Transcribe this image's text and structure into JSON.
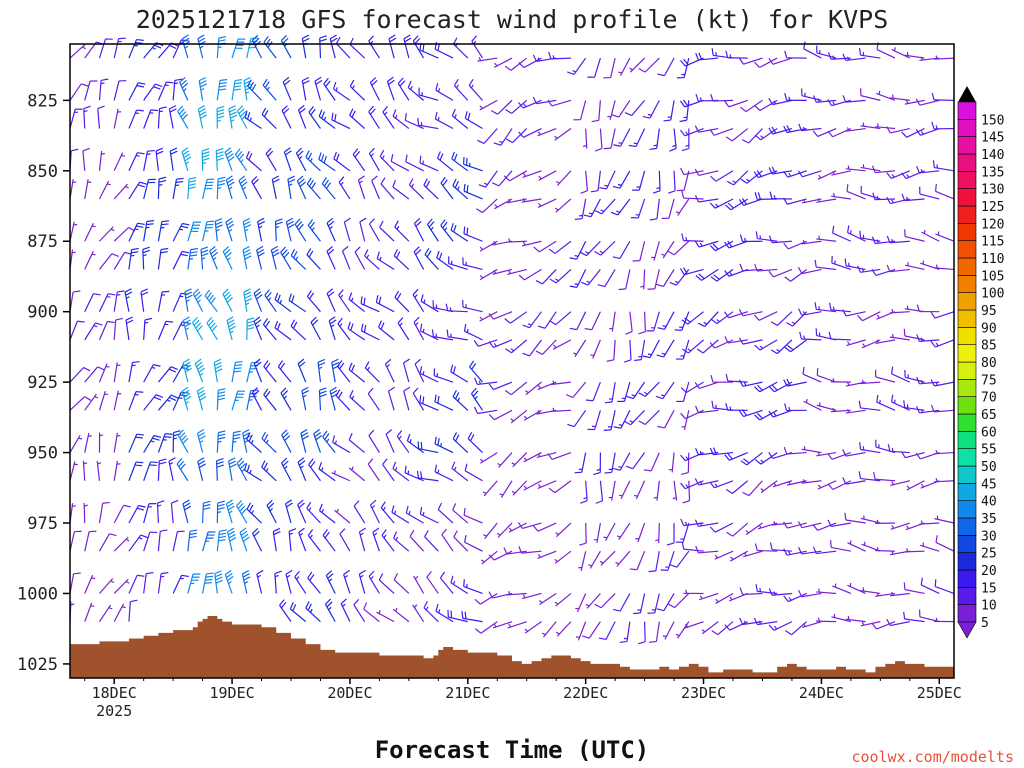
{
  "chart_data": {
    "type": "wind-barb-time-height",
    "title": "2025121718 GFS forecast wind profile (kt) for KVPS",
    "xlabel": "Forecast Time (UTC)",
    "credit": "coolwx.com/modelts",
    "units": "kt",
    "y_axis": {
      "quantity": "pressure (hPa)",
      "range": [
        1030,
        805
      ],
      "ticks": [
        825,
        850,
        875,
        900,
        925,
        950,
        975,
        1000,
        1025
      ]
    },
    "x_axis": {
      "range_hours": [
        -3,
        177
      ],
      "ticks": [
        {
          "label": "18DEC",
          "sublabel": "2025",
          "hour": 6
        },
        {
          "label": "19DEC",
          "sublabel": "",
          "hour": 30
        },
        {
          "label": "20DEC",
          "sublabel": "",
          "hour": 54
        },
        {
          "label": "21DEC",
          "sublabel": "",
          "hour": 78
        },
        {
          "label": "22DEC",
          "sublabel": "",
          "hour": 102
        },
        {
          "label": "23DEC",
          "sublabel": "",
          "hour": 126
        },
        {
          "label": "24DEC",
          "sublabel": "",
          "hour": 150
        },
        {
          "label": "25DEC",
          "sublabel": "",
          "hour": 174
        }
      ]
    },
    "colorbar": {
      "levels": [
        5,
        10,
        15,
        20,
        25,
        30,
        35,
        40,
        45,
        50,
        55,
        60,
        65,
        70,
        75,
        80,
        85,
        90,
        95,
        100,
        105,
        110,
        115,
        120,
        125,
        130,
        135,
        140,
        145,
        150
      ],
      "colors": [
        "#7a1fd6",
        "#5a1ae8",
        "#3a1af0",
        "#1a2adc",
        "#1048e0",
        "#1068e8",
        "#1088ec",
        "#10a8e4",
        "#10c8c8",
        "#10e0a8",
        "#10e080",
        "#30e030",
        "#70e010",
        "#a8e810",
        "#d8f010",
        "#f0f010",
        "#f0e000",
        "#f0c000",
        "#f0a000",
        "#f08000",
        "#f06800",
        "#f05000",
        "#f03800",
        "#f02020",
        "#f01040",
        "#f01060",
        "#e81080",
        "#e810a0",
        "#e010c0",
        "#d810e0"
      ]
    },
    "terrain": {
      "color": "#a0522d",
      "surface_pressure": [
        [
          -3,
          1018
        ],
        [
          0,
          1018
        ],
        [
          3,
          1017
        ],
        [
          6,
          1017
        ],
        [
          9,
          1016
        ],
        [
          12,
          1015
        ],
        [
          15,
          1014
        ],
        [
          18,
          1013
        ],
        [
          21,
          1013
        ],
        [
          22,
          1012
        ],
        [
          23,
          1010
        ],
        [
          24,
          1009
        ],
        [
          25,
          1008
        ],
        [
          26,
          1008
        ],
        [
          27,
          1009
        ],
        [
          28,
          1010
        ],
        [
          30,
          1011
        ],
        [
          33,
          1011
        ],
        [
          36,
          1012
        ],
        [
          39,
          1014
        ],
        [
          42,
          1016
        ],
        [
          45,
          1018
        ],
        [
          48,
          1020
        ],
        [
          51,
          1021
        ],
        [
          54,
          1021
        ],
        [
          57,
          1021
        ],
        [
          60,
          1022
        ],
        [
          63,
          1022
        ],
        [
          66,
          1022
        ],
        [
          69,
          1023
        ],
        [
          71,
          1022
        ],
        [
          72,
          1020
        ],
        [
          73,
          1019
        ],
        [
          75,
          1020
        ],
        [
          78,
          1021
        ],
        [
          81,
          1021
        ],
        [
          84,
          1022
        ],
        [
          87,
          1024
        ],
        [
          89,
          1025
        ],
        [
          91,
          1024
        ],
        [
          93,
          1023
        ],
        [
          95,
          1022
        ],
        [
          97,
          1022
        ],
        [
          99,
          1023
        ],
        [
          101,
          1024
        ],
        [
          103,
          1025
        ],
        [
          106,
          1025
        ],
        [
          109,
          1026
        ],
        [
          111,
          1027
        ],
        [
          114,
          1027
        ],
        [
          117,
          1026
        ],
        [
          119,
          1027
        ],
        [
          121,
          1026
        ],
        [
          123,
          1025
        ],
        [
          125,
          1026
        ],
        [
          127,
          1028
        ],
        [
          130,
          1027
        ],
        [
          133,
          1027
        ],
        [
          136,
          1028
        ],
        [
          139,
          1028
        ],
        [
          141,
          1026
        ],
        [
          143,
          1025
        ],
        [
          145,
          1026
        ],
        [
          147,
          1027
        ],
        [
          149,
          1027
        ],
        [
          151,
          1027
        ],
        [
          153,
          1026
        ],
        [
          155,
          1027
        ],
        [
          157,
          1027
        ],
        [
          159,
          1028
        ],
        [
          161,
          1026
        ],
        [
          163,
          1025
        ],
        [
          165,
          1024
        ],
        [
          167,
          1025
        ],
        [
          169,
          1025
        ],
        [
          171,
          1026
        ],
        [
          174,
          1026
        ],
        [
          177,
          1026
        ]
      ]
    },
    "pressure_levels": [
      810,
      825,
      835,
      850,
      860,
      875,
      885,
      900,
      910,
      925,
      935,
      950,
      960,
      975,
      985,
      1000,
      1010
    ],
    "forecast_hours": [
      -3,
      0,
      3,
      6,
      9,
      12,
      15,
      18,
      21,
      24,
      27,
      30,
      33,
      36,
      39,
      42,
      45,
      48,
      51,
      54,
      57,
      60,
      63,
      66,
      69,
      72,
      75,
      78,
      81,
      84,
      87,
      90,
      93,
      96,
      99,
      102,
      105,
      108,
      111,
      114,
      117,
      120,
      123,
      126,
      129,
      132,
      135,
      138,
      141,
      144,
      147,
      150,
      153,
      156,
      159,
      162,
      165,
      168,
      171,
      174,
      177
    ],
    "wind_profile_model": {
      "description": "barbs at each (hour, pressure level) above terrain; direction from, speed in kt",
      "phases": [
        {
          "hours": [
            -3,
            8
          ],
          "dir_deg": 20,
          "speed_kt": 8
        },
        {
          "hours": [
            8,
            21
          ],
          "dir_deg": 15,
          "speed_kt": 20
        },
        {
          "hours": [
            21,
            36
          ],
          "dir_deg": 350,
          "speed_kt": 38
        },
        {
          "hours": [
            36,
            54
          ],
          "dir_deg": 330,
          "speed_kt": 24
        },
        {
          "hours": [
            54,
            72
          ],
          "dir_deg": 320,
          "speed_kt": 15
        },
        {
          "hours": [
            72,
            84
          ],
          "dir_deg": 300,
          "speed_kt": 18
        },
        {
          "hours": [
            84,
            102
          ],
          "dir_deg": 240,
          "speed_kt": 8
        },
        {
          "hours": [
            102,
            126
          ],
          "dir_deg": 200,
          "speed_kt": 12
        },
        {
          "hours": [
            126,
            150
          ],
          "dir_deg": 250,
          "speed_kt": 14
        },
        {
          "hours": [
            150,
            177
          ],
          "dir_deg": 270,
          "speed_kt": 10
        }
      ]
    }
  }
}
